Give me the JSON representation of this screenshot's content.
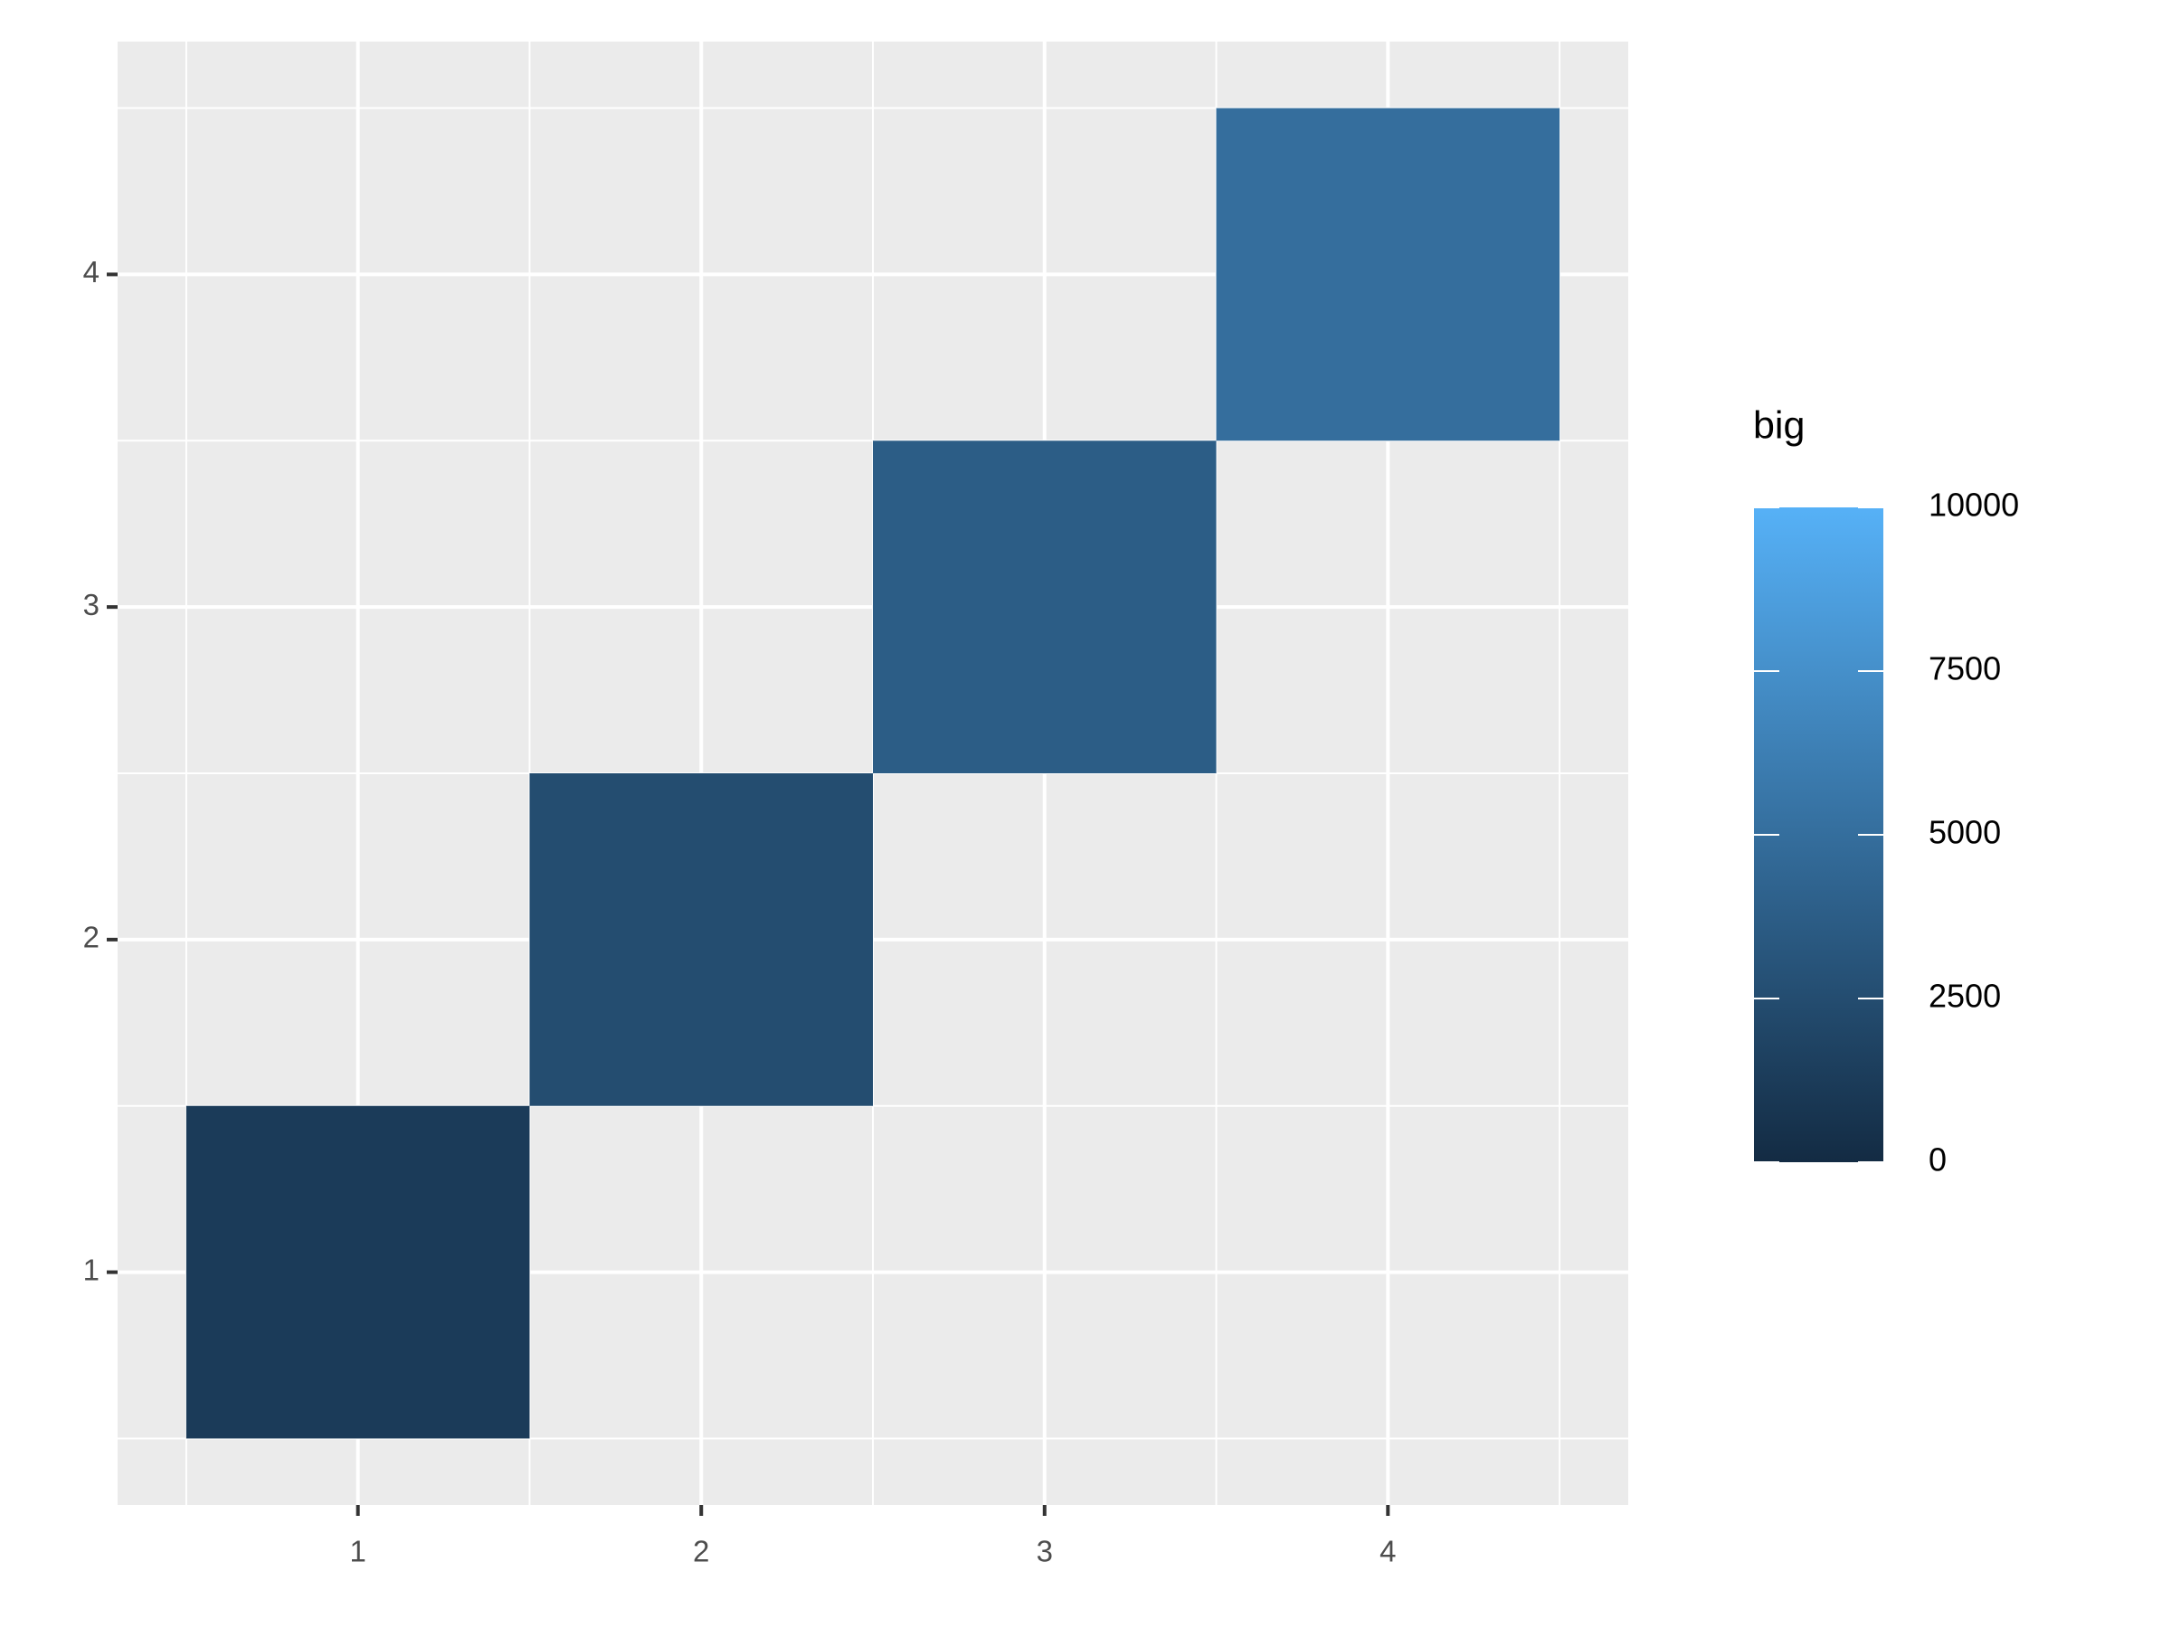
{
  "chart_data": {
    "type": "heatmap",
    "x": [
      1,
      2,
      3,
      4
    ],
    "y": [
      1,
      2,
      3,
      4
    ],
    "values": [
      1200,
      2500,
      3700,
      5000
    ],
    "xlim": [
      0.3,
      4.7
    ],
    "ylim": [
      0.3,
      4.7
    ],
    "xticks": [
      1,
      2,
      3,
      4
    ],
    "yticks": [
      1,
      2,
      3,
      4
    ],
    "grid": true,
    "legend_title": "big",
    "color_low": "#132B43",
    "color_high": "#56B1F7",
    "clim": [
      0,
      10000
    ],
    "cticks": [
      0,
      2500,
      5000,
      7500,
      10000
    ],
    "panel_color": "#EBEBEB"
  }
}
